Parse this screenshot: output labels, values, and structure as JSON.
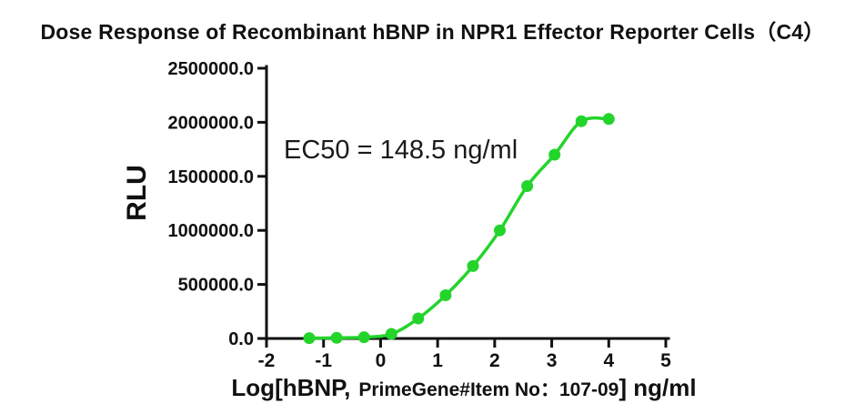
{
  "chart_data": {
    "type": "scatter",
    "title": "Dose Response of Recombinant hBNP in NPR1 Effector Reporter Cells（C4）",
    "xlabel": "Log[hBNP, PrimeGene#Item No：107-09] ng/ml",
    "ylabel": "RLU",
    "annotation": "EC50 = 148.5 ng/ml",
    "x": [
      -1.25,
      -0.77,
      -0.29,
      0.19,
      0.66,
      1.14,
      1.62,
      2.09,
      2.57,
      3.05,
      3.52,
      4.0
    ],
    "y": [
      3000,
      6000,
      12000,
      42000,
      185000,
      400000,
      670000,
      1000000,
      1410000,
      1700000,
      2010000,
      2030000
    ],
    "xlim": [
      -2,
      5
    ],
    "ylim": [
      0,
      2500000
    ],
    "curve": "sigmoidal dose-response fit through points",
    "grid": false,
    "legend": "none",
    "marker_color": "#23d42b",
    "line_color": "#23d42b",
    "axis_color": "#111111"
  },
  "x_axis": {
    "tick_labels": [
      "-2",
      "-1",
      "0",
      "1",
      "2",
      "3",
      "4",
      "5"
    ],
    "title_parts": [
      "Log[hBNP,",
      "PrimeGene#Item No：107-09",
      "] ng/ml"
    ]
  },
  "y_axis": {
    "tick_labels": [
      "0.0",
      "500000.0",
      "1000000.0",
      "1500000.0",
      "2000000.0",
      "2500000.0"
    ]
  }
}
